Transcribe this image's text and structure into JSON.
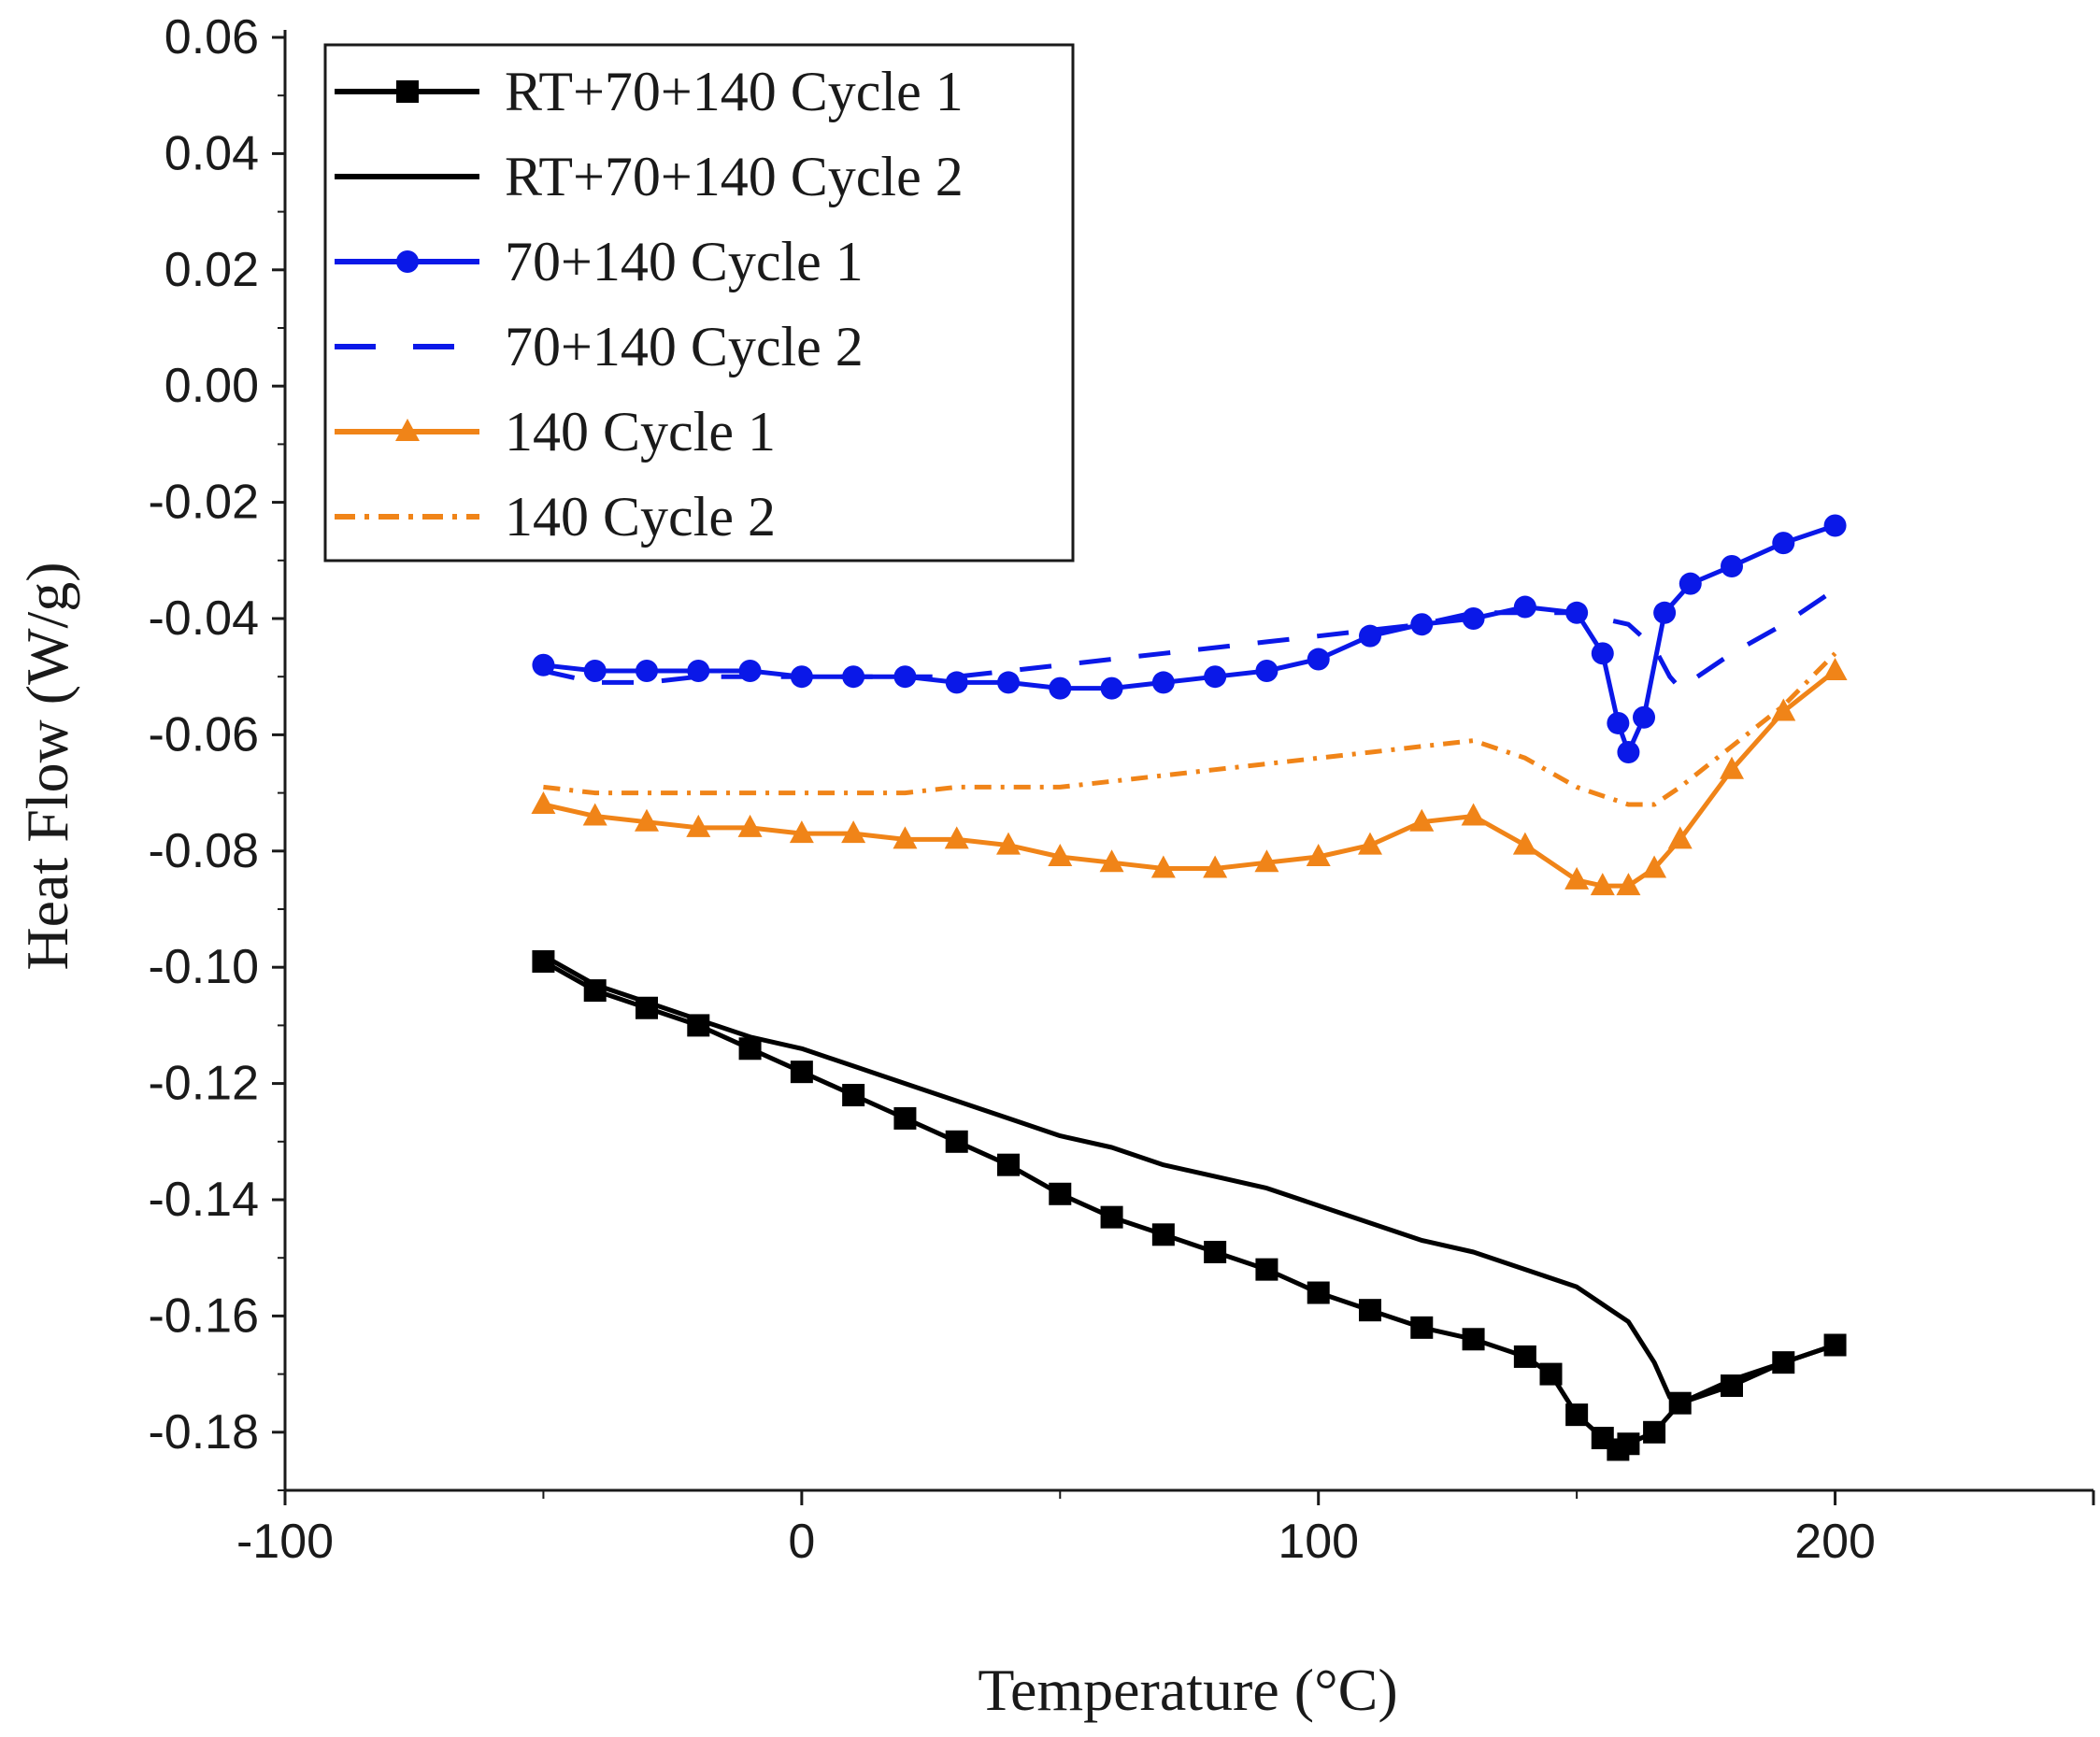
{
  "chart_data": {
    "type": "line",
    "title": "",
    "xlabel": "Temperature (°C)",
    "ylabel": "Heat Flow (W/g)",
    "xlim": [
      -100,
      250
    ],
    "ylim": [
      -0.19,
      0.06
    ],
    "x_ticks": [
      -100,
      0,
      100,
      200
    ],
    "x_tick_labels": [
      "-100",
      "0",
      "100",
      "200"
    ],
    "y_ticks": [
      0.06,
      0.04,
      0.02,
      0.0,
      -0.02,
      -0.04,
      -0.06,
      -0.08,
      -0.1,
      -0.12,
      -0.14,
      -0.16,
      -0.18
    ],
    "y_tick_labels": [
      "0.06",
      "0.04",
      "0.02",
      "0.00",
      "-0.02",
      "-0.04",
      "-0.06",
      "-0.08",
      "-0.10",
      "-0.12",
      "-0.14",
      "-0.16",
      "-0.18"
    ],
    "grid": false,
    "legend_position": "top-left",
    "series": [
      {
        "name": "RT+70+140 Cycle 1",
        "color": "#000000",
        "style": "solid",
        "marker": "square",
        "x": [
          -50,
          -40,
          -30,
          -20,
          -10,
          0,
          10,
          20,
          30,
          40,
          50,
          60,
          70,
          80,
          90,
          100,
          110,
          120,
          130,
          140,
          145,
          150,
          155,
          158,
          160,
          165,
          170,
          180,
          190,
          200
        ],
        "y": [
          -0.099,
          -0.104,
          -0.107,
          -0.11,
          -0.114,
          -0.118,
          -0.122,
          -0.126,
          -0.13,
          -0.134,
          -0.139,
          -0.143,
          -0.146,
          -0.149,
          -0.152,
          -0.156,
          -0.159,
          -0.162,
          -0.164,
          -0.167,
          -0.17,
          -0.177,
          -0.181,
          -0.183,
          -0.182,
          -0.18,
          -0.175,
          -0.172,
          -0.168,
          -0.165
        ]
      },
      {
        "name": "RT+70+140 Cycle 2",
        "color": "#000000",
        "style": "solid",
        "marker": "none",
        "x": [
          -50,
          -40,
          -30,
          -20,
          -10,
          0,
          10,
          20,
          30,
          40,
          50,
          60,
          70,
          80,
          90,
          100,
          110,
          120,
          130,
          140,
          150,
          155,
          160,
          165,
          168,
          170,
          175,
          180,
          190,
          200
        ],
        "y": [
          -0.098,
          -0.103,
          -0.106,
          -0.109,
          -0.112,
          -0.114,
          -0.117,
          -0.12,
          -0.123,
          -0.126,
          -0.129,
          -0.131,
          -0.134,
          -0.136,
          -0.138,
          -0.141,
          -0.144,
          -0.147,
          -0.149,
          -0.152,
          -0.155,
          -0.158,
          -0.161,
          -0.168,
          -0.174,
          -0.175,
          -0.173,
          -0.171,
          -0.168,
          -0.165
        ]
      },
      {
        "name": "70+140 Cycle 1",
        "color": "#0a18e8",
        "style": "solid",
        "marker": "circle",
        "x": [
          -50,
          -40,
          -30,
          -20,
          -10,
          0,
          10,
          20,
          30,
          40,
          50,
          60,
          70,
          80,
          90,
          100,
          110,
          120,
          130,
          140,
          150,
          155,
          158,
          160,
          163,
          167,
          172,
          180,
          190,
          200
        ],
        "y": [
          -0.048,
          -0.049,
          -0.049,
          -0.049,
          -0.049,
          -0.05,
          -0.05,
          -0.05,
          -0.051,
          -0.051,
          -0.052,
          -0.052,
          -0.051,
          -0.05,
          -0.049,
          -0.047,
          -0.043,
          -0.041,
          -0.04,
          -0.038,
          -0.039,
          -0.046,
          -0.058,
          -0.063,
          -0.057,
          -0.039,
          -0.034,
          -0.031,
          -0.027,
          -0.024
        ]
      },
      {
        "name": "70+140 Cycle 2",
        "color": "#0a18e8",
        "style": "dashed",
        "marker": "none",
        "x": [
          -50,
          -40,
          -30,
          -20,
          -10,
          0,
          10,
          20,
          30,
          40,
          50,
          60,
          70,
          80,
          90,
          100,
          110,
          120,
          130,
          140,
          150,
          160,
          165,
          168,
          170,
          175,
          180,
          190,
          200
        ],
        "y": [
          -0.049,
          -0.051,
          -0.051,
          -0.05,
          -0.05,
          -0.05,
          -0.05,
          -0.05,
          -0.05,
          -0.049,
          -0.048,
          -0.047,
          -0.046,
          -0.045,
          -0.044,
          -0.043,
          -0.042,
          -0.041,
          -0.039,
          -0.039,
          -0.039,
          -0.041,
          -0.045,
          -0.05,
          -0.052,
          -0.049,
          -0.046,
          -0.041,
          -0.035
        ]
      },
      {
        "name": "140 Cycle 1",
        "color": "#f08418",
        "style": "solid",
        "marker": "triangle",
        "x": [
          -50,
          -40,
          -30,
          -20,
          -10,
          0,
          10,
          20,
          30,
          40,
          50,
          60,
          70,
          80,
          90,
          100,
          110,
          120,
          130,
          140,
          150,
          155,
          160,
          165,
          170,
          180,
          190,
          200
        ],
        "y": [
          -0.072,
          -0.074,
          -0.075,
          -0.076,
          -0.076,
          -0.077,
          -0.077,
          -0.078,
          -0.078,
          -0.079,
          -0.081,
          -0.082,
          -0.083,
          -0.083,
          -0.082,
          -0.081,
          -0.079,
          -0.075,
          -0.074,
          -0.079,
          -0.085,
          -0.086,
          -0.086,
          -0.083,
          -0.078,
          -0.066,
          -0.056,
          -0.049
        ]
      },
      {
        "name": "140 Cycle 2",
        "color": "#f08418",
        "style": "dashdot",
        "marker": "none",
        "x": [
          -50,
          -40,
          -30,
          -20,
          -10,
          0,
          10,
          20,
          30,
          40,
          50,
          60,
          70,
          80,
          90,
          100,
          110,
          120,
          130,
          140,
          150,
          160,
          165,
          170,
          180,
          190,
          200
        ],
        "y": [
          -0.069,
          -0.07,
          -0.07,
          -0.07,
          -0.07,
          -0.07,
          -0.07,
          -0.07,
          -0.069,
          -0.069,
          -0.069,
          -0.068,
          -0.067,
          -0.066,
          -0.065,
          -0.064,
          -0.063,
          -0.062,
          -0.061,
          -0.064,
          -0.069,
          -0.072,
          -0.072,
          -0.069,
          -0.062,
          -0.055,
          -0.046
        ]
      }
    ]
  }
}
